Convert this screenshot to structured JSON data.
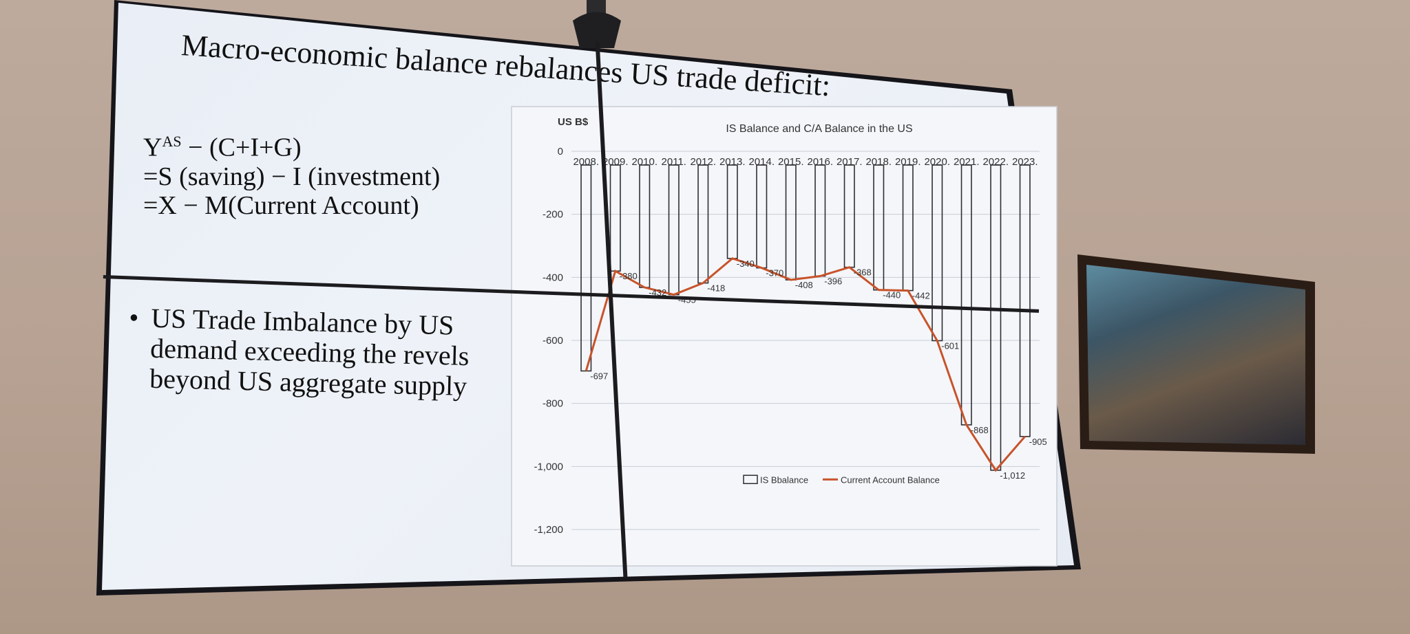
{
  "slide": {
    "title": "Macro-economic balance rebalances US trade deficit:",
    "formula": {
      "line1_prefix": "Y",
      "line1_sup": "AS",
      "line1_rest": " − (C+I+G)",
      "line2": "=S (saving) − I (investment)",
      "line3": "=X − M(Current Account)"
    },
    "bullet": {
      "marker": "•",
      "lines": [
        "US Trade Imbalance by US",
        "demand exceeding the revels",
        "beyond US aggregate supply"
      ]
    }
  },
  "chart_data": {
    "type": "bar",
    "title": "IS Balance and C/A Balance in the US",
    "ylabel": "US B$",
    "ylim": [
      -1200,
      0
    ],
    "yticks": [
      "0",
      "-200",
      "-400",
      "-600",
      "-800",
      "-1,000",
      "-1,200"
    ],
    "ytick_values": [
      0,
      -200,
      -400,
      -600,
      -800,
      -1000,
      -1200
    ],
    "categories": [
      "2008.",
      "2009.",
      "2010.",
      "2011.",
      "2012.",
      "2013.",
      "2014.",
      "2015.",
      "2016.",
      "2017.",
      "2018.",
      "2019.",
      "2020.",
      "2021.",
      "2022.",
      "2023."
    ],
    "series": [
      {
        "name": "IS Bbalance",
        "kind": "bar",
        "values": [
          -697,
          -380,
          -432,
          -455,
          -418,
          -340,
          -370,
          -408,
          -396,
          -368,
          -440,
          -442,
          -601,
          -868,
          -1012,
          -905
        ]
      },
      {
        "name": "Current Account Balance",
        "kind": "line",
        "color": "#c8532a",
        "values": [
          -697,
          -380,
          -432,
          -455,
          -418,
          -340,
          -370,
          -408,
          -396,
          -368,
          -440,
          -442,
          -601,
          -868,
          -1012,
          -905
        ]
      }
    ],
    "data_labels": [
      "-697",
      "-380",
      "-432",
      "-455",
      "-418",
      "-340",
      "-370",
      "-408",
      "-396",
      "-368",
      "-440",
      "-442",
      "-601",
      "-868",
      "-1,012",
      "-905"
    ],
    "legend": "bottom",
    "grid": true
  }
}
